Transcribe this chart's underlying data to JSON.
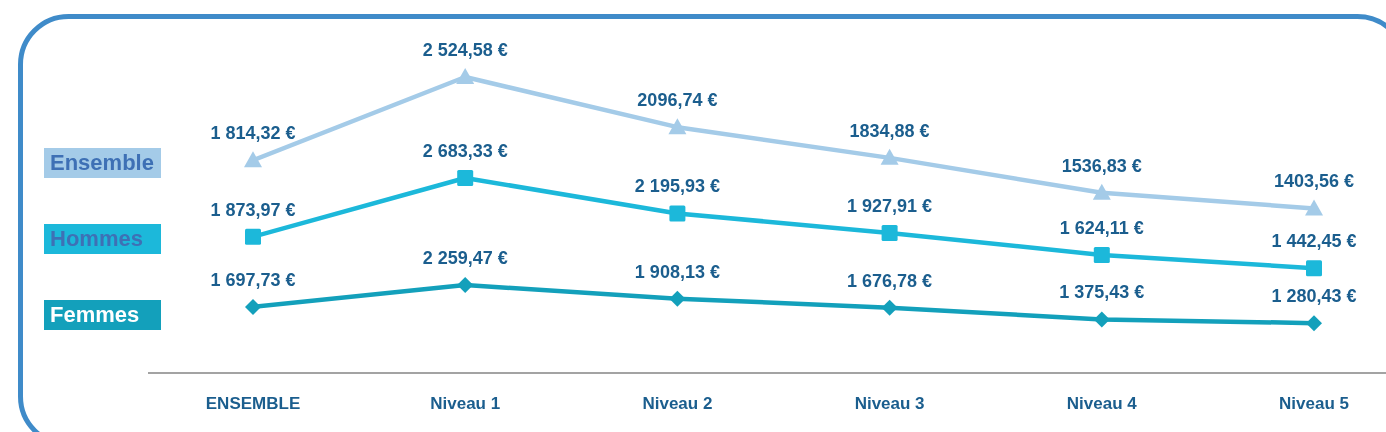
{
  "chart_data": [
    {
      "type": "line",
      "categories": [
        "ENSEMBLE",
        "Niveau 1",
        "Niveau 2",
        "Niveau 3",
        "Niveau 4",
        "Niveau 5"
      ],
      "series": [
        {
          "name": "Ensemble",
          "color": "#a4cbe8",
          "marker": "triangle",
          "values": [
            1814.32,
            2524.58,
            2096.74,
            1834.88,
            1536.83,
            1403.56
          ],
          "value_labels": [
            "1 814,32 €",
            "2 524,58 €",
            "2096,74 €",
            "1834,88 €",
            "1536,83 €",
            "1403,56 €"
          ]
        }
      ],
      "tick_labels": "x",
      "legend": "left"
    },
    {
      "type": "line",
      "categories": [
        null,
        null,
        null,
        null,
        null,
        null
      ],
      "series": [
        {
          "name": "Hommes",
          "color": "#1cb8da",
          "marker": "square",
          "values": [
            1873.97,
            2683.33,
            2195.93,
            1927.91,
            1624.11,
            1442.45
          ],
          "value_labels": [
            "1 873,97 €",
            "2 683,33 €",
            "2 195,93 €",
            "1 927,91 €",
            "1 624,11 €",
            "1 442,45 €"
          ]
        }
      ],
      "tick_labels": false,
      "legend": "left"
    },
    {
      "type": "line",
      "categories": [
        null,
        null,
        null,
        null,
        null,
        null
      ],
      "series": [
        {
          "name": "Femmes",
          "color": "#13a0bb",
          "marker": "diamond",
          "values": [
            1697.73,
            2259.47,
            1908.13,
            1676.78,
            1375.43,
            1280.43
          ],
          "value_labels": [
            "1 697,73 €",
            "2 259,47 €",
            "1 908,13 €",
            "1 676,78 €",
            "1 375,43 €",
            "1 280,43 €"
          ]
        }
      ],
      "tick_labels": false,
      "legend": "left"
    }
  ]
}
